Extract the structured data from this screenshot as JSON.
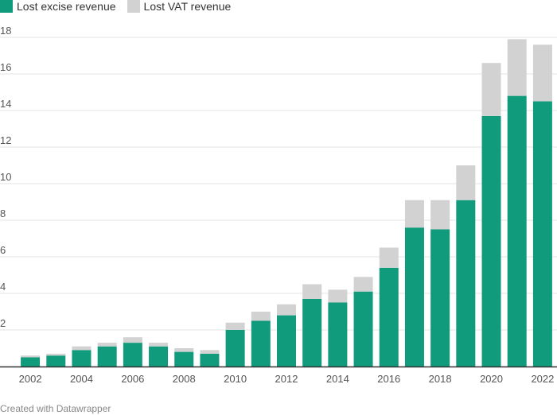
{
  "chart_data": {
    "type": "bar",
    "stacked": true,
    "categories": [
      "2002",
      "2003",
      "2004",
      "2005",
      "2006",
      "2007",
      "2008",
      "2009",
      "2010",
      "2011",
      "2012",
      "2013",
      "2014",
      "2015",
      "2016",
      "2017",
      "2018",
      "2019",
      "2020",
      "2021",
      "2022"
    ],
    "x_tick_labels": [
      "2002",
      "2004",
      "2006",
      "2008",
      "2010",
      "2012",
      "2014",
      "2016",
      "2018",
      "2020",
      "2022"
    ],
    "series": [
      {
        "name": "Lost excise revenue",
        "color": "#119b7d",
        "values": [
          0.5,
          0.6,
          0.9,
          1.1,
          1.3,
          1.1,
          0.8,
          0.7,
          2.0,
          2.5,
          2.8,
          3.7,
          3.5,
          4.1,
          5.4,
          7.6,
          7.5,
          9.1,
          13.7,
          14.8,
          14.5
        ]
      },
      {
        "name": "Lost VAT revenue",
        "color": "#d2d2d2",
        "values": [
          0.1,
          0.1,
          0.2,
          0.2,
          0.3,
          0.2,
          0.2,
          0.2,
          0.4,
          0.5,
          0.6,
          0.8,
          0.7,
          0.8,
          1.1,
          1.5,
          1.6,
          1.9,
          2.9,
          3.1,
          3.1
        ]
      }
    ],
    "y_ticks": [
      2,
      4,
      6,
      8,
      10,
      12,
      14,
      16,
      18
    ],
    "ylim": [
      0,
      19
    ],
    "grid": true,
    "legend_position": "top-left",
    "title": "",
    "xlabel": "",
    "ylabel": ""
  },
  "credit": "Created with Datawrapper"
}
